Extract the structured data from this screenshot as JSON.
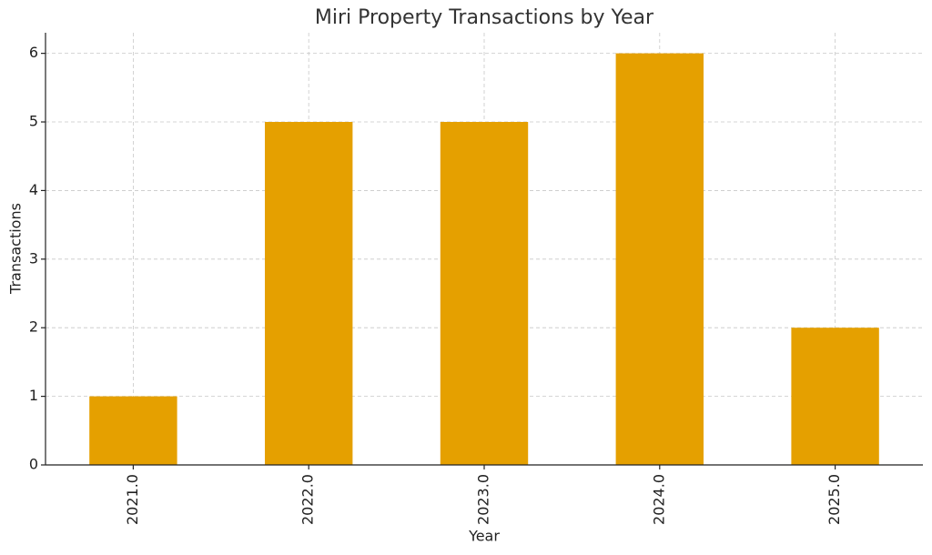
{
  "chart_data": {
    "type": "bar",
    "title": "Miri Property Transactions by Year",
    "x_label": "Year",
    "y_label": "Transactions",
    "categories": [
      "2021.0",
      "2022.0",
      "2023.0",
      "2024.0",
      "2025.0"
    ],
    "values": [
      1,
      5,
      5,
      6,
      2
    ],
    "color": "#e5a000",
    "ylim": [
      0,
      6.3
    ],
    "yticks": [
      0,
      1,
      2,
      3,
      4,
      5,
      6
    ],
    "grid": true
  }
}
